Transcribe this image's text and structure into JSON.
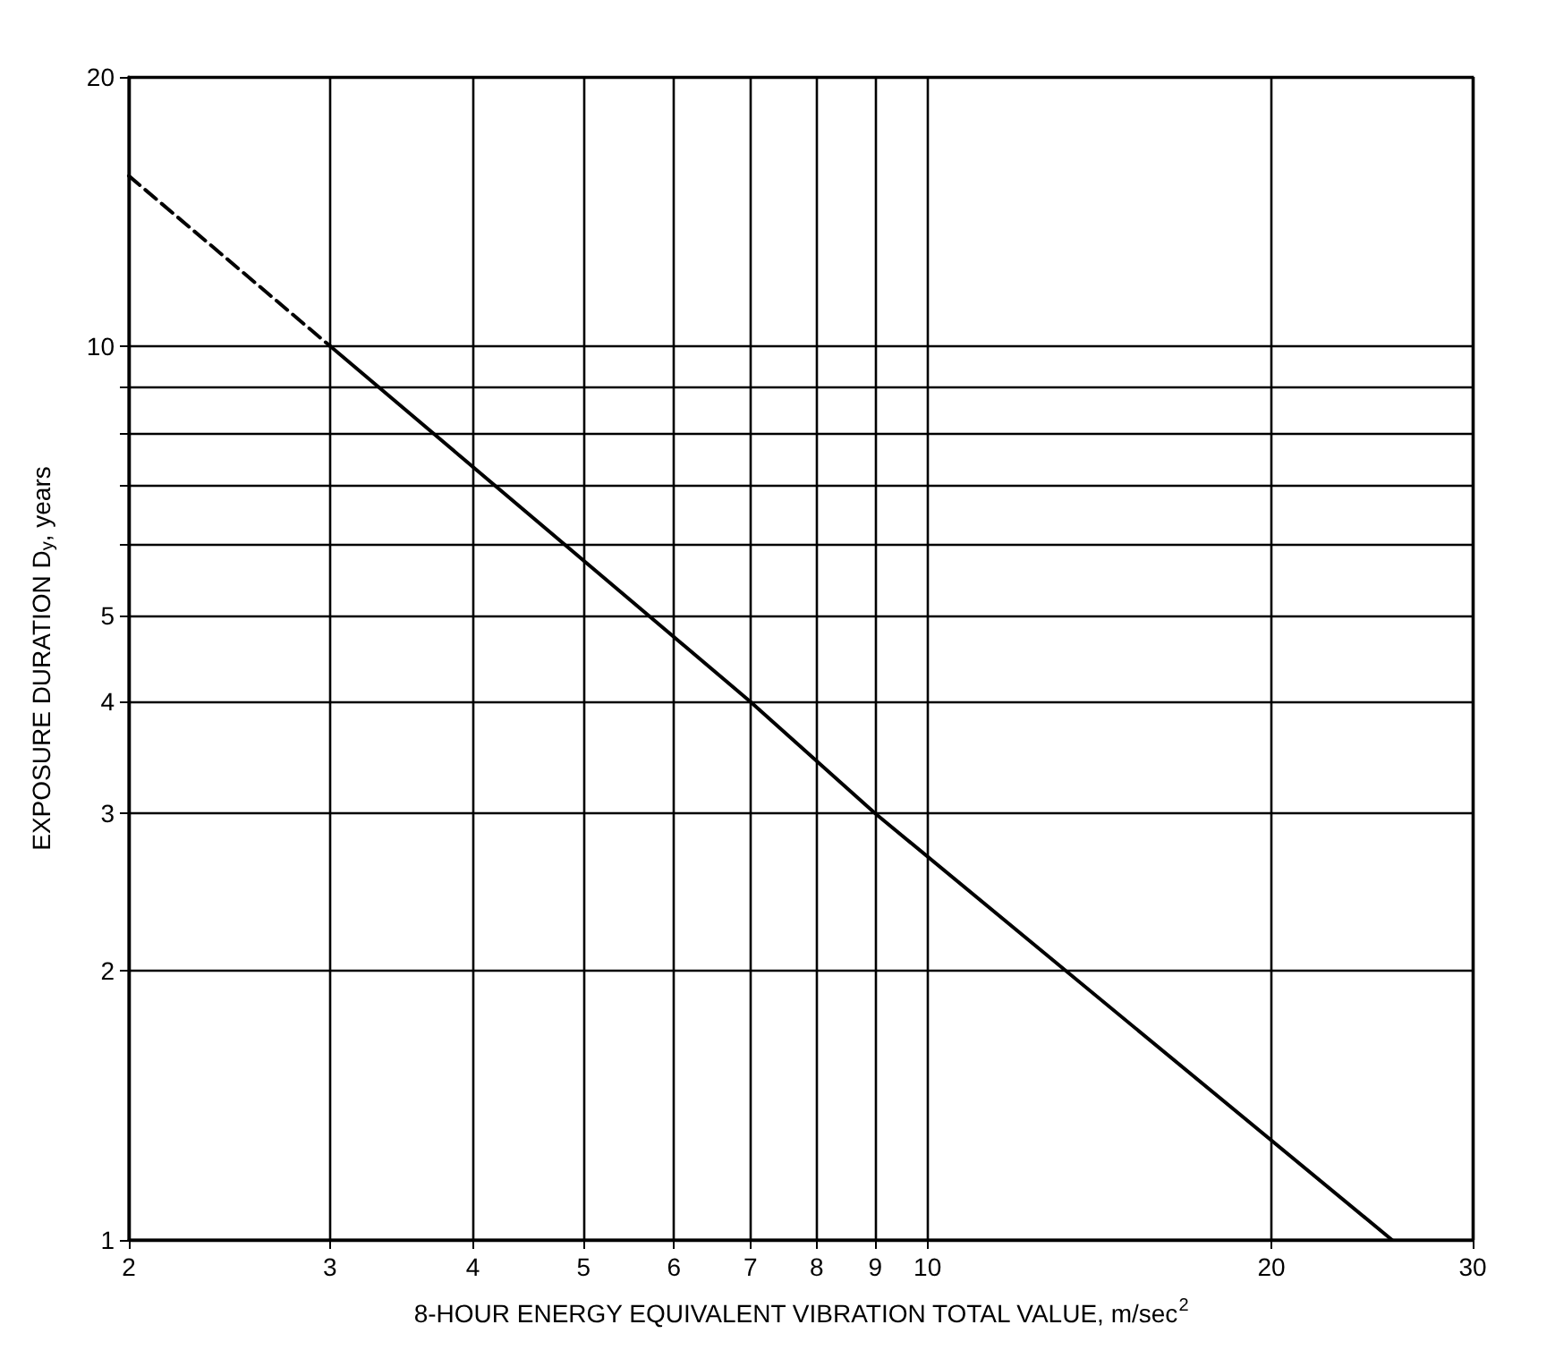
{
  "chart_data": {
    "type": "line",
    "xlabel": "8-HOUR ENERGY EQUIVALENT VIBRATION TOTAL VALUE, m/sec$^{2}$",
    "ylabel": "EXPOSURE DURATION D$_{y}$, years",
    "log": "xy",
    "xlim": [
      2,
      30
    ],
    "ylim": [
      1,
      20
    ],
    "xticks": [
      2,
      3,
      4,
      5,
      6,
      7,
      8,
      9,
      10,
      20,
      30
    ],
    "yticks": [
      1,
      2,
      3,
      4,
      5,
      {
        "value": 6,
        "label": null
      },
      {
        "value": 7,
        "label": null
      },
      {
        "value": 8,
        "label": null
      },
      {
        "value": 9,
        "label": null
      },
      10,
      20
    ],
    "grid": true,
    "marker": "none",
    "series": [
      {
        "color": "#000000",
        "line_style": "dashed",
        "x": [
          2,
          3
        ],
        "values": [
          15.5,
          10
        ]
      },
      {
        "color": "#000000",
        "line_style": "solid",
        "x": [
          3,
          7,
          9,
          25.5
        ],
        "values": [
          10,
          4,
          3,
          1
        ]
      }
    ]
  }
}
